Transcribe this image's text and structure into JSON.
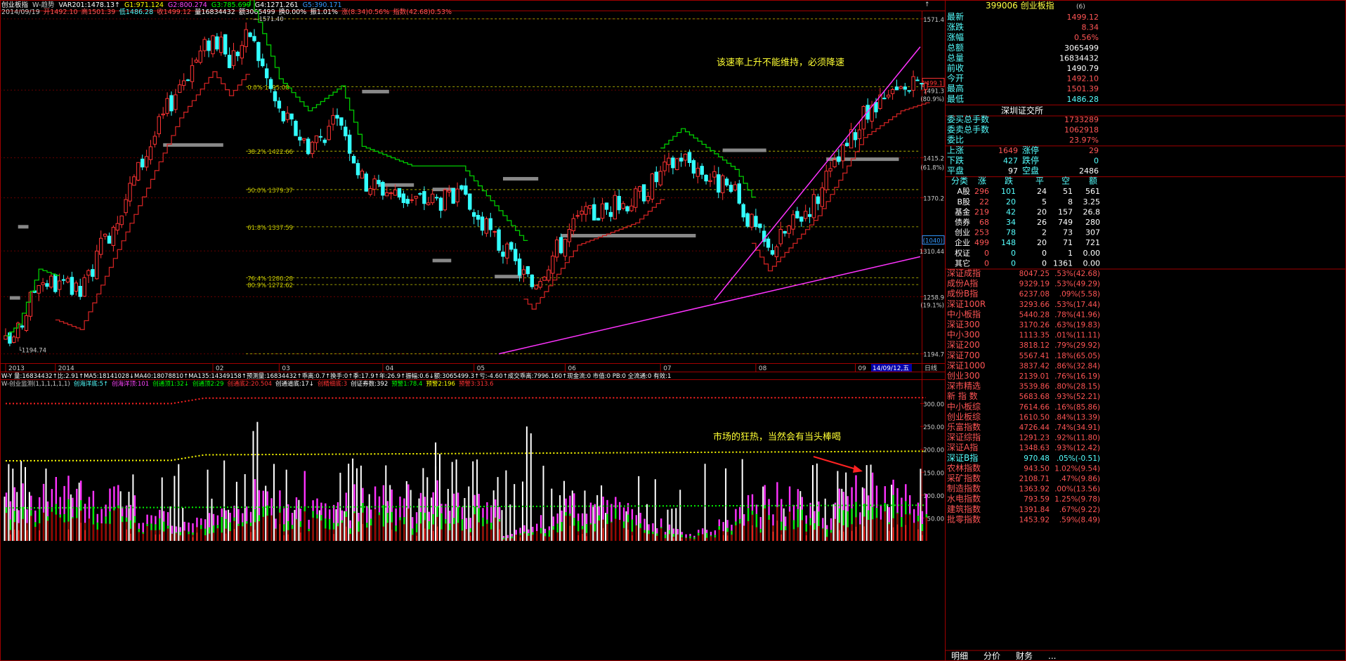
{
  "header": {
    "line1": [
      {
        "t": "创业板指",
        "c": "#ffffff"
      },
      {
        "t": "W-趋势",
        "c": "#cccccc"
      },
      {
        "t": "VAR201:1478.13↑",
        "c": "#ffffff"
      },
      {
        "t": "G1:971.124",
        "c": "#ffff00"
      },
      {
        "t": "G2:800.274",
        "c": "#ff44ff"
      },
      {
        "t": "G3:785.699",
        "c": "#00ff00"
      },
      {
        "t": "G4:1271.261",
        "c": "#ffffff"
      },
      {
        "t": "G5:390.171",
        "c": "#3399ff"
      }
    ],
    "line2": [
      {
        "t": "2014/09/19",
        "c": "#cccccc"
      },
      {
        "t": "开1492.10",
        "c": "#ff5555"
      },
      {
        "t": "高1501.39",
        "c": "#ff5555"
      },
      {
        "t": "低1486.28",
        "c": "#55ffff"
      },
      {
        "t": "收1499.12",
        "c": "#ff5555"
      },
      {
        "t": "量16834432",
        "c": "#ffffff"
      },
      {
        "t": "额3065499",
        "c": "#ffffff"
      },
      {
        "t": "换0.00%",
        "c": "#ffffff"
      },
      {
        "t": "振1.01%",
        "c": "#ffffff"
      },
      {
        "t": "涨(8.34)0.56%",
        "c": "#ff5555"
      },
      {
        "t": "指数(42.68)0.53%",
        "c": "#ff5555"
      }
    ]
  },
  "price_axis": {
    "labels": [
      {
        "v": 1571.4,
        "t": "1571.4"
      },
      {
        "v": 1491.3,
        "t": "1491.3"
      },
      {
        "v": 1415.2,
        "t": "1415.2"
      },
      {
        "v": 1370.2,
        "t": "1370.2"
      },
      {
        "v": 1310.44,
        "t": "1310.44"
      },
      {
        "v": 1258.9,
        "t": "1258.9"
      },
      {
        "v": 1194.7,
        "t": "1194.7"
      }
    ],
    "pct_labels": [
      {
        "v": 1482,
        "t": "(80.9%)"
      },
      {
        "v": 1405,
        "t": "(61.8%)"
      },
      {
        "v": 1250,
        "t": "(19.1%)"
      }
    ],
    "boxed": [
      {
        "v": 1499.1,
        "t": "1499.1",
        "c": "#ff3333"
      },
      {
        "v": 1322,
        "t": "(1040)",
        "c": "#3399ff"
      }
    ],
    "high_note": "1571.40",
    "low_note": "1194.74"
  },
  "fib_levels": [
    {
      "v": 1495.08,
      "t": "0.0% 1495.08"
    },
    {
      "v": 1422.66,
      "t": "38.2% 1422.66"
    },
    {
      "v": 1379.37,
      "t": "50.0% 1379.37"
    },
    {
      "v": 1337.59,
      "t": "61.8% 1337.59"
    },
    {
      "v": 1280.28,
      "t": "76.4% 1280.28"
    },
    {
      "v": 1272.62,
      "t": "80.9% 1272.62"
    }
  ],
  "date_axis": {
    "labels": [
      {
        "i": 0,
        "t": "2013"
      },
      {
        "i": 12,
        "t": "2014"
      },
      {
        "i": 50,
        "t": "02"
      },
      {
        "i": 66,
        "t": "03"
      },
      {
        "i": 91,
        "t": "04"
      },
      {
        "i": 113,
        "t": "05"
      },
      {
        "i": 135,
        "t": "06"
      },
      {
        "i": 158,
        "t": "07"
      },
      {
        "i": 181,
        "t": "08"
      },
      {
        "i": 205,
        "t": "09"
      }
    ],
    "cursor": "14/09/12,五",
    "right_label": "日线"
  },
  "annotations": {
    "top": "该速率上升不能维持，必须降速",
    "bottom": "市场的狂热，当然会有当头棒喝"
  },
  "info_line": "W-Y 量:16834432↑比:2.91↑MA5:18141028↓MA40:18078810↑MA135:14349158↑预测量:16834432↑乖离:0.7↑换手:0↑季:17.9↑年:26.9↑振幅:0.6↓额:3065499.3↑亏:-4.60↑成交乖离:7996.160↑现金流:0 市值:0 PB:0 全流通:0 有效:1",
  "indicator_line": [
    {
      "t": "W-创业监测(1,1,1,1,1,1)",
      "c": "#cccccc"
    },
    {
      "t": "创海洋底:5↑",
      "c": "#55ffff"
    },
    {
      "t": "创海洋顶:101",
      "c": "#ff44ff"
    },
    {
      "t": "创通顶1:32↓",
      "c": "#00ff00"
    },
    {
      "t": "创通顶2:29",
      "c": "#00ff00"
    },
    {
      "t": "创通底2:20.504",
      "c": "#ff3333"
    },
    {
      "t": "创通道底:17↓",
      "c": "#ffffff"
    },
    {
      "t": "创精细底:3",
      "c": "#ff3333"
    },
    {
      "t": "创证券数:392",
      "c": "#ffffff"
    },
    {
      "t": "预警1:78.4",
      "c": "#00ff00"
    },
    {
      "t": "预警2:196",
      "c": "#ffff00"
    },
    {
      "t": "预警3:313.6",
      "c": "#ff3333"
    }
  ],
  "lower_axis": [
    "300.00",
    "250.00",
    "200.00",
    "150.00",
    "100.00",
    "50.00"
  ],
  "panel": {
    "title": "399006 创业板指",
    "title_suffix": "(6)",
    "quotes": [
      {
        "k": "最新",
        "v": "1499.12",
        "c": "#ff5555"
      },
      {
        "k": "涨跌",
        "v": "8.34",
        "c": "#ff5555"
      },
      {
        "k": "涨幅",
        "v": "0.56%",
        "c": "#ff5555"
      },
      {
        "k": "总额",
        "v": "3065499",
        "c": "#ffffff"
      },
      {
        "k": "总量",
        "v": "16834432",
        "c": "#ffffff"
      },
      {
        "k": "前收",
        "v": "1490.79",
        "c": "#ffffff"
      },
      {
        "k": "今开",
        "v": "1492.10",
        "c": "#ff5555"
      },
      {
        "k": "最高",
        "v": "1501.39",
        "c": "#ff5555"
      },
      {
        "k": "最低",
        "v": "1486.28",
        "c": "#55ffff"
      }
    ],
    "exchange": "深圳证交所",
    "orders": [
      {
        "k": "委买总手数",
        "v": "1733289",
        "c": "#ff5555"
      },
      {
        "k": "委卖总手数",
        "v": "1062918",
        "c": "#ff5555"
      },
      {
        "k": "委比",
        "v": "23.97%",
        "c": "#ff5555"
      }
    ],
    "breadth": [
      {
        "k1": "上涨",
        "v1": "1649",
        "c1": "#ff5555",
        "k2": "涨停",
        "v2": "29",
        "c2": "#ff5555"
      },
      {
        "k1": "下跌",
        "v1": "427",
        "c1": "#55ffff",
        "k2": "跌停",
        "v2": "0",
        "c2": "#55ffff"
      },
      {
        "k1": "平盘",
        "v1": "97",
        "c1": "#ffffff",
        "k2": "空盘",
        "v2": "2486",
        "c2": "#ffffff"
      }
    ],
    "cat_headers": [
      "分类",
      "涨",
      "跌",
      "平",
      "空",
      "额"
    ],
    "categories": [
      [
        "A股",
        "296",
        "101",
        "24",
        "51",
        "561"
      ],
      [
        "B股",
        "22",
        "20",
        "5",
        "8",
        "3.25"
      ],
      [
        "基金",
        "219",
        "42",
        "20",
        "157",
        "26.8"
      ],
      [
        "债券",
        "68",
        "34",
        "26",
        "749",
        "280"
      ],
      [
        "创业",
        "253",
        "78",
        "2",
        "73",
        "307"
      ],
      [
        "企业",
        "499",
        "148",
        "20",
        "71",
        "721"
      ],
      [
        "权证",
        "0",
        "0",
        "0",
        "1",
        "0.00"
      ],
      [
        "其它",
        "0",
        "0",
        "0",
        "1361",
        "0.00"
      ]
    ],
    "indices": [
      {
        "n": "深证成指",
        "v": "8047.25",
        "p": ".53%(42.68)",
        "c": "#ff5555"
      },
      {
        "n": "成份A指",
        "v": "9329.19",
        "p": ".53%(49.29)",
        "c": "#ff5555"
      },
      {
        "n": "成份B指",
        "v": "6237.08",
        "p": ".09%(5.58)",
        "c": "#ff5555"
      },
      {
        "n": "深证100R",
        "v": "3293.66",
        "p": ".53%(17.44)",
        "c": "#ff5555"
      },
      {
        "n": "中小板指",
        "v": "5440.28",
        "p": ".78%(41.96)",
        "c": "#ff5555"
      },
      {
        "n": "深证300",
        "v": "3170.26",
        "p": ".63%(19.83)",
        "c": "#ff5555"
      },
      {
        "n": "中小300",
        "v": "1113.35",
        "p": ".01%(11.11)",
        "c": "#ff5555"
      },
      {
        "n": "深证200",
        "v": "3818.12",
        "p": ".79%(29.92)",
        "c": "#ff5555"
      },
      {
        "n": "深证700",
        "v": "5567.41",
        "p": ".18%(65.05)",
        "c": "#ff5555"
      },
      {
        "n": "深证1000",
        "v": "3837.42",
        "p": ".86%(32.84)",
        "c": "#ff5555"
      },
      {
        "n": "创业300",
        "v": "2139.01",
        "p": ".76%(16.19)",
        "c": "#ff5555"
      },
      {
        "n": "深市精选",
        "v": "3539.86",
        "p": ".80%(28.15)",
        "c": "#ff5555"
      },
      {
        "n": "新 指 数",
        "v": "5683.68",
        "p": ".93%(52.21)",
        "c": "#ff5555"
      },
      {
        "n": "中小板综",
        "v": "7614.66",
        "p": ".16%(85.86)",
        "c": "#ff5555"
      },
      {
        "n": "创业板综",
        "v": "1610.50",
        "p": ".84%(13.39)",
        "c": "#ff5555"
      },
      {
        "n": "乐富指数",
        "v": "4726.44",
        "p": ".74%(34.91)",
        "c": "#ff5555"
      },
      {
        "n": "深证综指",
        "v": "1291.23",
        "p": ".92%(11.80)",
        "c": "#ff5555"
      },
      {
        "n": "深证A指",
        "v": "1348.63",
        "p": ".93%(12.42)",
        "c": "#ff5555"
      },
      {
        "n": "深证B指",
        "v": "970.48",
        "p": ".05%(-0.51)",
        "c": "#55ffff"
      },
      {
        "n": "农林指数",
        "v": "943.50",
        "p": "1.02%(9.54)",
        "c": "#ff5555"
      },
      {
        "n": "采矿指数",
        "v": "2108.71",
        "p": ".47%(9.86)",
        "c": "#ff5555"
      },
      {
        "n": "制造指数",
        "v": "1363.92",
        "p": ".00%(13.56)",
        "c": "#ff5555"
      },
      {
        "n": "水电指数",
        "v": "793.59",
        "p": "1.25%(9.78)",
        "c": "#ff5555"
      },
      {
        "n": "建筑指数",
        "v": "1391.84",
        "p": ".67%(9.22)",
        "c": "#ff5555"
      },
      {
        "n": "批零指数",
        "v": "1453.92",
        "p": ".59%(8.49)",
        "c": "#ff5555"
      }
    ],
    "tabs": [
      "明细",
      "分价",
      "财务",
      "..."
    ]
  }
}
